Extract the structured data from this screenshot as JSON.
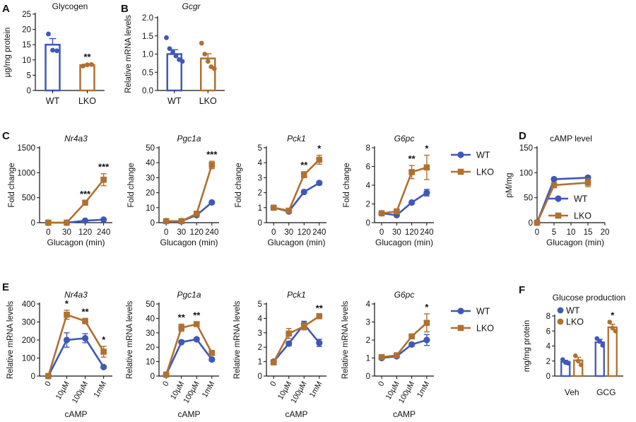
{
  "colors": {
    "wt": "#3f58b8",
    "lko": "#b07030",
    "axis": "#111111"
  },
  "legend_labels": {
    "wt": "WT",
    "lko": "LKO"
  },
  "chart_data": [
    {
      "panel": "A",
      "type": "bar",
      "title": "Glycogen",
      "title_italic": false,
      "categories": [
        "WT",
        "LKO"
      ],
      "values": [
        15,
        8.3
      ],
      "errors": [
        2.0,
        0.3
      ],
      "points": [
        [
          18.5,
          13.2,
          13.0
        ],
        [
          8.0,
          8.4,
          8.5
        ]
      ],
      "significance": [
        "",
        "**"
      ],
      "ylabel": "µg/mg protein",
      "xlabel": "",
      "ylim": [
        0,
        25
      ],
      "yticks": [
        "0",
        "5",
        "10",
        "15",
        "20",
        "25"
      ],
      "yticks_values": [
        0,
        5,
        10,
        15,
        20,
        25
      ]
    },
    {
      "panel": "B",
      "type": "bar",
      "title": "Gcgr",
      "title_italic": true,
      "categories": [
        "WT",
        "LKO"
      ],
      "values": [
        1.0,
        0.88
      ],
      "errors": [
        0.12,
        0.13
      ],
      "points": [
        [
          1.45,
          1.15,
          1.05,
          0.95,
          0.85,
          0.8
        ],
        [
          1.3,
          1.0,
          0.8,
          0.65,
          0.6
        ]
      ],
      "significance": [
        "",
        ""
      ],
      "ylabel": "Relative mRNA levels",
      "xlabel": "",
      "ylim": [
        0,
        2.0
      ],
      "yticks": [
        "0.0",
        "0.5",
        "1.0",
        "1.5",
        "2.0"
      ],
      "yticks_values": [
        0,
        0.5,
        1.0,
        1.5,
        2.0
      ]
    },
    {
      "panel": "C",
      "type": "line",
      "title": "Nr4a3",
      "title_italic": true,
      "ylabel": "Fold change",
      "xlabel": "Glucagon (min)",
      "x_categories": [
        "0",
        "30",
        "120",
        "240"
      ],
      "series": [
        {
          "name": "WT",
          "values": [
            0,
            0,
            40,
            60
          ],
          "errors": [
            0,
            0,
            10,
            10
          ]
        },
        {
          "name": "LKO",
          "values": [
            0,
            0,
            400,
            860
          ],
          "errors": [
            0,
            0,
            40,
            120
          ]
        }
      ],
      "significance": [
        "",
        "",
        "***",
        "***"
      ],
      "ylim": [
        0,
        1500
      ],
      "yticks": [
        "0",
        "500",
        "1000",
        "1500"
      ],
      "yticks_values": [
        0,
        500,
        1000,
        1500
      ],
      "legend": false
    },
    {
      "panel": "",
      "type": "line",
      "title": "Pgc1a",
      "title_italic": true,
      "ylabel": "Fold change",
      "xlabel": "Glucagon (min)",
      "x_categories": [
        "0",
        "30",
        "120",
        "240"
      ],
      "series": [
        {
          "name": "WT",
          "values": [
            1,
            1,
            5,
            13.5
          ],
          "errors": [
            0,
            0,
            0.5,
            0.5
          ]
        },
        {
          "name": "LKO",
          "values": [
            1,
            1,
            6,
            38.5
          ],
          "errors": [
            0,
            0,
            0.8,
            2.5
          ]
        }
      ],
      "significance": [
        "",
        "",
        "",
        "***"
      ],
      "ylim": [
        0,
        50
      ],
      "yticks": [
        "0",
        "10",
        "20",
        "30",
        "40",
        "50"
      ],
      "yticks_values": [
        0,
        10,
        20,
        30,
        40,
        50
      ],
      "legend": false
    },
    {
      "panel": "",
      "type": "line",
      "title": "Pck1",
      "title_italic": true,
      "ylabel": "Fold change",
      "xlabel": "Glucagon (min)",
      "x_categories": [
        "0",
        "30",
        "120",
        "240"
      ],
      "series": [
        {
          "name": "WT",
          "values": [
            1,
            0.75,
            2.05,
            2.65
          ],
          "errors": [
            0.05,
            0.05,
            0.1,
            0.1
          ]
        },
        {
          "name": "LKO",
          "values": [
            1,
            0.8,
            3.2,
            4.2
          ],
          "errors": [
            0.05,
            0.05,
            0.2,
            0.3
          ]
        }
      ],
      "significance": [
        "",
        "",
        "**",
        "*"
      ],
      "ylim": [
        0,
        5
      ],
      "yticks": [
        "0",
        "1",
        "2",
        "3",
        "4",
        "5"
      ],
      "yticks_values": [
        0,
        1,
        2,
        3,
        4,
        5
      ],
      "legend": false
    },
    {
      "panel": "",
      "type": "line",
      "title": "G6pc",
      "title_italic": true,
      "ylabel": "Fold change",
      "xlabel": "Glucagon (min)",
      "x_categories": [
        "0",
        "30",
        "120",
        "240"
      ],
      "series": [
        {
          "name": "WT",
          "values": [
            1,
            0.8,
            2.15,
            3.2
          ],
          "errors": [
            0.05,
            0.1,
            0.15,
            0.35
          ]
        },
        {
          "name": "LKO",
          "values": [
            1,
            1.2,
            5.4,
            5.9
          ],
          "errors": [
            0.05,
            0.15,
            0.7,
            1.3
          ]
        }
      ],
      "significance": [
        "",
        "",
        "**",
        "*"
      ],
      "ylim": [
        0,
        8
      ],
      "yticks": [
        "0",
        "2",
        "4",
        "6",
        "8"
      ],
      "yticks_values": [
        0,
        2,
        4,
        6,
        8
      ],
      "legend": true,
      "legend_position": "right"
    },
    {
      "panel": "D",
      "type": "line",
      "title": "cAMP level",
      "title_italic": false,
      "ylabel": "pM/mg",
      "xlabel": "Glucagon (min)",
      "x_numeric": true,
      "x_values": [
        0,
        5,
        15
      ],
      "xlim": [
        0,
        20
      ],
      "xticks": [
        "0",
        "5",
        "10",
        "15",
        "20"
      ],
      "xticks_values": [
        0,
        5,
        10,
        15,
        20
      ],
      "series": [
        {
          "name": "WT",
          "values": [
            0,
            87,
            90
          ],
          "errors": [
            0,
            3,
            3
          ]
        },
        {
          "name": "LKO",
          "values": [
            0,
            75,
            80
          ],
          "errors": [
            0,
            4,
            8
          ]
        }
      ],
      "significance": [
        "",
        "",
        ""
      ],
      "ylim": [
        0,
        150
      ],
      "yticks": [
        "0",
        "50",
        "100",
        "150"
      ],
      "yticks_values": [
        0,
        50,
        100,
        150
      ],
      "legend": true,
      "legend_position": "inside-bottom-right"
    },
    {
      "panel": "E",
      "type": "line",
      "title": "Nr4a3",
      "title_italic": true,
      "ylabel": "Relative mRNA levels",
      "xlabel": "cAMP",
      "x_categories": [
        "0",
        "10µM",
        "100µM",
        "1mM"
      ],
      "x_rotated": true,
      "series": [
        {
          "name": "WT",
          "values": [
            0,
            200,
            210,
            50
          ],
          "errors": [
            0,
            40,
            25,
            5
          ]
        },
        {
          "name": "LKO",
          "values": [
            0,
            340,
            305,
            135
          ],
          "errors": [
            0,
            25,
            15,
            30
          ]
        }
      ],
      "significance": [
        "",
        "*",
        "**",
        "*"
      ],
      "ylim": [
        0,
        400
      ],
      "yticks": [
        "0",
        "100",
        "200",
        "300",
        "400"
      ],
      "yticks_values": [
        0,
        100,
        200,
        300,
        400
      ],
      "legend": false
    },
    {
      "panel": "",
      "type": "line",
      "title": "Pgc1a",
      "title_italic": true,
      "ylabel": "Relative mRNA levels",
      "xlabel": "cAMP",
      "x_categories": [
        "0",
        "10µM",
        "100µM",
        "1mM"
      ],
      "x_rotated": true,
      "series": [
        {
          "name": "WT",
          "values": [
            1,
            23.5,
            25.5,
            11.5
          ],
          "errors": [
            0,
            1,
            1,
            1
          ]
        },
        {
          "name": "LKO",
          "values": [
            1,
            33.5,
            36,
            16
          ],
          "errors": [
            0,
            2.5,
            1.5,
            1.5
          ]
        }
      ],
      "significance": [
        "",
        "**",
        "**",
        ""
      ],
      "ylim": [
        0,
        50
      ],
      "yticks": [
        "0",
        "10",
        "20",
        "30",
        "40",
        "50"
      ],
      "yticks_values": [
        0,
        10,
        20,
        30,
        40,
        50
      ],
      "legend": false
    },
    {
      "panel": "",
      "type": "line",
      "title": "Pck1",
      "title_italic": true,
      "ylabel": "Relative mRNA levels",
      "xlabel": "cAMP",
      "x_categories": [
        "0",
        "10µM",
        "100µM",
        "1mM"
      ],
      "x_rotated": true,
      "series": [
        {
          "name": "WT",
          "values": [
            1,
            2.25,
            3.6,
            2.3
          ],
          "errors": [
            0.1,
            0.15,
            0.2,
            0.25
          ]
        },
        {
          "name": "LKO",
          "values": [
            0.95,
            2.95,
            3.45,
            4.15
          ],
          "errors": [
            0.1,
            0.35,
            0.25,
            0.1
          ]
        }
      ],
      "significance": [
        "",
        "",
        "",
        "**"
      ],
      "ylim": [
        0,
        5
      ],
      "yticks": [
        "0",
        "1",
        "2",
        "3",
        "4",
        "5"
      ],
      "yticks_values": [
        0,
        1,
        2,
        3,
        4,
        5
      ],
      "legend": false
    },
    {
      "panel": "",
      "type": "line",
      "title": "G6pc",
      "title_italic": true,
      "ylabel": "Relative mRNA levels",
      "xlabel": "cAMP",
      "x_categories": [
        "0",
        "10µM",
        "100µM",
        "1mM"
      ],
      "x_rotated": true,
      "series": [
        {
          "name": "WT",
          "values": [
            1,
            1.1,
            1.75,
            2.0
          ],
          "errors": [
            0.05,
            0.05,
            0.1,
            0.3
          ]
        },
        {
          "name": "LKO",
          "values": [
            1.05,
            1.15,
            2.2,
            2.95
          ],
          "errors": [
            0.1,
            0.1,
            0.1,
            0.5
          ]
        }
      ],
      "significance": [
        "",
        "",
        "",
        "*"
      ],
      "ylim": [
        0,
        4
      ],
      "yticks": [
        "0",
        "1",
        "2",
        "3",
        "4"
      ],
      "yticks_values": [
        0,
        1,
        2,
        3,
        4
      ],
      "legend": true,
      "legend_position": "right"
    },
    {
      "panel": "F",
      "type": "grouped_bar",
      "title": "Glucose production",
      "title_italic": false,
      "ylabel": "mg/mg protein",
      "xlabel": "",
      "categories": [
        "Veh",
        "GCG"
      ],
      "series": [
        {
          "name": "WT",
          "values": [
            1.9,
            4.5
          ],
          "errors": [
            0.2,
            0.4
          ],
          "points": [
            [
              2.2,
              1.8,
              1.7
            ],
            [
              5.0,
              4.6,
              4.1
            ]
          ]
        },
        {
          "name": "LKO",
          "values": [
            2.1,
            6.5
          ],
          "errors": [
            0.4,
            0.4
          ],
          "points": [
            [
              2.7,
              2.0,
              1.5
            ],
            [
              7.2,
              6.4,
              6.0
            ]
          ]
        }
      ],
      "significance": [
        "",
        "*"
      ],
      "ylim": [
        0,
        8
      ],
      "yticks": [
        "0",
        "2",
        "4",
        "6",
        "8"
      ],
      "yticks_values": [
        0,
        2,
        4,
        6,
        8
      ],
      "legend": true,
      "legend_position": "top-left"
    }
  ]
}
